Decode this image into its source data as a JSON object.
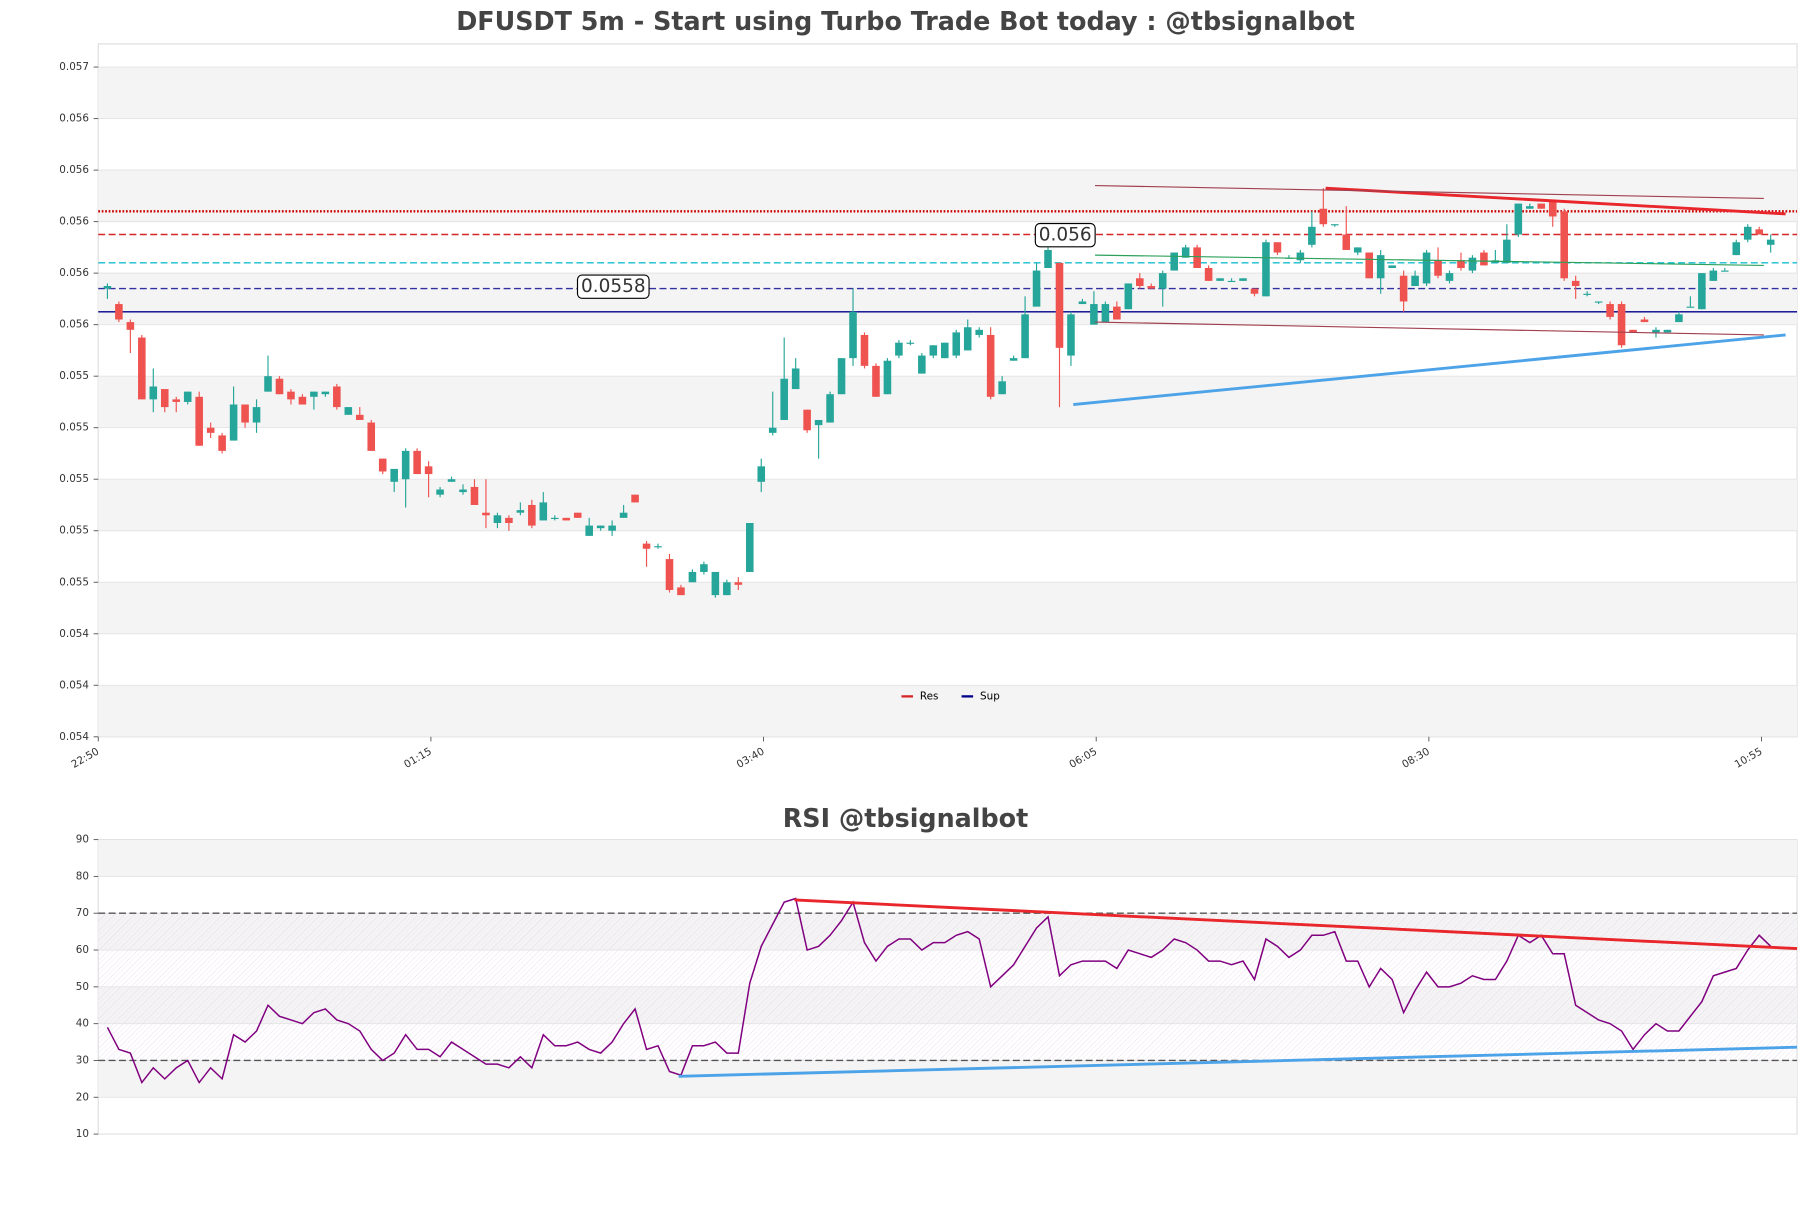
{
  "chart_data": [
    {
      "type": "candlestick",
      "title": "DFUSDT 5m - Start using Turbo Trade Bot today : @tbsignalbot",
      "open": [
        0.05584,
        0.05578,
        0.05571,
        0.05565,
        0.05541,
        0.05545,
        0.05541,
        0.0554,
        0.05542,
        0.0553,
        0.05527,
        0.05525,
        0.05539,
        0.05532,
        0.05544,
        0.05549,
        0.05544,
        0.05542,
        0.05542,
        0.05543,
        0.05546,
        0.05535,
        0.05535,
        0.05532,
        0.05518,
        0.05509,
        0.0551,
        0.05521,
        0.05515,
        0.05504,
        0.05509,
        0.05505,
        0.05507,
        0.05497,
        0.05493,
        0.05495,
        0.05497,
        0.055,
        0.05494,
        0.05495,
        0.05495,
        0.05497,
        0.05488,
        0.05491,
        0.0549,
        0.05495,
        0.05504,
        0.05485,
        0.05484,
        0.05479,
        0.05468,
        0.0547,
        0.05474,
        0.05465,
        0.05465,
        0.0547,
        0.05474,
        0.05509,
        0.05528,
        0.05533,
        0.05545,
        0.05537,
        0.05531,
        0.05532,
        0.05543,
        0.05557,
        0.05566,
        0.05554,
        0.05543,
        0.05558,
        0.05563,
        0.05551,
        0.05558,
        0.05557,
        0.05558,
        0.0556,
        0.05566,
        0.05566,
        0.05543,
        0.05556,
        0.05557,
        0.05577,
        0.05592,
        0.05594,
        0.05558,
        0.05578,
        0.0557,
        0.05571,
        0.05577,
        0.05576,
        0.05588,
        0.05585,
        0.05584,
        0.05591,
        0.05596,
        0.056,
        0.05592,
        0.05587,
        0.05587,
        0.05587,
        0.05584,
        0.05581,
        0.05602,
        0.05596,
        0.05595,
        0.05601,
        0.05615,
        0.05609,
        0.05605,
        0.05598,
        0.05598,
        0.05588,
        0.05592,
        0.05589,
        0.05585,
        0.05586,
        0.05595,
        0.05587,
        0.05595,
        0.05591,
        0.05598,
        0.05594,
        0.05594,
        0.05605,
        0.05615,
        0.05617,
        0.05618,
        0.05614,
        0.05587,
        0.05582,
        0.05579,
        0.05578,
        0.05578,
        0.05568,
        0.05572,
        0.05567,
        0.05567,
        0.05571,
        0.05577,
        0.05576,
        0.05587,
        0.05591,
        0.05597,
        0.05603,
        0.05607,
        0.05601
      ],
      "high": [
        0.05586,
        0.05579,
        0.05572,
        0.05566,
        0.05553,
        0.05545,
        0.05542,
        0.05544,
        0.05544,
        0.05532,
        0.05528,
        0.05546,
        0.05539,
        0.05541,
        0.05558,
        0.0555,
        0.05545,
        0.05543,
        0.05544,
        0.05544,
        0.05547,
        0.05538,
        0.05538,
        0.05533,
        0.05518,
        0.05514,
        0.05522,
        0.05522,
        0.05517,
        0.05507,
        0.05511,
        0.05508,
        0.0551,
        0.0551,
        0.05497,
        0.05496,
        0.05501,
        0.05502,
        0.05505,
        0.05496,
        0.05495,
        0.05497,
        0.05495,
        0.05492,
        0.05494,
        0.055,
        0.05504,
        0.05486,
        0.05485,
        0.05481,
        0.05469,
        0.05475,
        0.05478,
        0.05474,
        0.05471,
        0.05472,
        0.05493,
        0.05518,
        0.05544,
        0.05565,
        0.05557,
        0.05537,
        0.05533,
        0.05544,
        0.05557,
        0.05584,
        0.05567,
        0.05555,
        0.05557,
        0.05564,
        0.05564,
        0.05559,
        0.05562,
        0.05563,
        0.05568,
        0.05572,
        0.05569,
        0.05569,
        0.0555,
        0.05558,
        0.05581,
        0.05594,
        0.056,
        0.05594,
        0.05575,
        0.0558,
        0.05583,
        0.05579,
        0.05579,
        0.05586,
        0.0559,
        0.05586,
        0.05591,
        0.05598,
        0.05601,
        0.05601,
        0.05593,
        0.05588,
        0.05588,
        0.05588,
        0.05584,
        0.05603,
        0.05602,
        0.05597,
        0.05599,
        0.05614,
        0.05623,
        0.05609,
        0.05616,
        0.056,
        0.05598,
        0.05599,
        0.05593,
        0.05591,
        0.05591,
        0.05599,
        0.056,
        0.05591,
        0.05598,
        0.05597,
        0.05599,
        0.05599,
        0.05609,
        0.05617,
        0.05617,
        0.05617,
        0.05618,
        0.05615,
        0.05589,
        0.05583,
        0.05579,
        0.05579,
        0.05579,
        0.05568,
        0.05573,
        0.05569,
        0.05568,
        0.05575,
        0.05581,
        0.0559,
        0.05592,
        0.05592,
        0.05603,
        0.05609,
        0.05608,
        0.05605
      ],
      "low": [
        0.0558,
        0.05571,
        0.05559,
        0.05541,
        0.05536,
        0.05536,
        0.05536,
        0.05539,
        0.05523,
        0.05526,
        0.0552,
        0.05525,
        0.0553,
        0.05528,
        0.05544,
        0.05543,
        0.05539,
        0.05539,
        0.05537,
        0.05542,
        0.05537,
        0.05535,
        0.05533,
        0.05521,
        0.05512,
        0.05505,
        0.05499,
        0.05512,
        0.05503,
        0.05503,
        0.05509,
        0.05504,
        0.055,
        0.05491,
        0.05491,
        0.0549,
        0.05496,
        0.05491,
        0.05494,
        0.05494,
        0.05494,
        0.05495,
        0.05488,
        0.0549,
        0.05488,
        0.05495,
        0.05501,
        0.05476,
        0.05483,
        0.05466,
        0.05465,
        0.0547,
        0.05473,
        0.05464,
        0.05465,
        0.05467,
        0.05474,
        0.05505,
        0.05527,
        0.05533,
        0.05545,
        0.05528,
        0.05518,
        0.05532,
        0.05543,
        0.05554,
        0.05553,
        0.05542,
        0.05543,
        0.05557,
        0.05562,
        0.05551,
        0.05557,
        0.05557,
        0.05557,
        0.0556,
        0.05565,
        0.05541,
        0.05543,
        0.05556,
        0.05557,
        0.05577,
        0.05592,
        0.05538,
        0.05554,
        0.05578,
        0.0557,
        0.05571,
        0.05572,
        0.05576,
        0.05584,
        0.05584,
        0.05577,
        0.05591,
        0.05596,
        0.05592,
        0.05587,
        0.05587,
        0.05587,
        0.05587,
        0.05581,
        0.05581,
        0.05597,
        0.05596,
        0.05594,
        0.056,
        0.05608,
        0.05608,
        0.05599,
        0.05597,
        0.05588,
        0.05582,
        0.05592,
        0.05575,
        0.05585,
        0.05585,
        0.05588,
        0.05586,
        0.05591,
        0.0559,
        0.05593,
        0.05594,
        0.05594,
        0.05604,
        0.05615,
        0.05615,
        0.05608,
        0.05587,
        0.0558,
        0.05581,
        0.05578,
        0.05572,
        0.05561,
        0.05567,
        0.05571,
        0.05565,
        0.05567,
        0.05571,
        0.05577,
        0.05576,
        0.05587,
        0.05591,
        0.05597,
        0.05602,
        0.05605,
        0.05598
      ],
      "close": [
        0.05585,
        0.05572,
        0.05568,
        0.05541,
        0.05546,
        0.05538,
        0.0554,
        0.05544,
        0.05523,
        0.05528,
        0.05521,
        0.05539,
        0.05532,
        0.05538,
        0.0555,
        0.05543,
        0.05541,
        0.05539,
        0.05544,
        0.05544,
        0.05538,
        0.05538,
        0.05533,
        0.05521,
        0.05513,
        0.05514,
        0.05521,
        0.05512,
        0.05512,
        0.05506,
        0.0551,
        0.05506,
        0.055,
        0.05496,
        0.05496,
        0.05493,
        0.05498,
        0.05492,
        0.05501,
        0.05495,
        0.05494,
        0.05495,
        0.05492,
        0.05492,
        0.05492,
        0.05497,
        0.05501,
        0.05483,
        0.05484,
        0.05467,
        0.05465,
        0.05474,
        0.05477,
        0.05474,
        0.0547,
        0.05469,
        0.05493,
        0.05515,
        0.0553,
        0.05549,
        0.05553,
        0.05529,
        0.05533,
        0.05543,
        0.05557,
        0.05575,
        0.05554,
        0.05542,
        0.05556,
        0.05563,
        0.05563,
        0.05558,
        0.05562,
        0.05563,
        0.05567,
        0.05569,
        0.05568,
        0.05542,
        0.05548,
        0.05557,
        0.05574,
        0.05591,
        0.05599,
        0.05561,
        0.05574,
        0.05579,
        0.05578,
        0.05578,
        0.05572,
        0.05586,
        0.05585,
        0.05584,
        0.0559,
        0.05598,
        0.056,
        0.05592,
        0.05587,
        0.05588,
        0.05587,
        0.05588,
        0.05582,
        0.05602,
        0.05598,
        0.05596,
        0.05598,
        0.05608,
        0.05609,
        0.05609,
        0.05599,
        0.056,
        0.05588,
        0.05597,
        0.05593,
        0.05579,
        0.05589,
        0.05598,
        0.05589,
        0.0559,
        0.05592,
        0.05596,
        0.05593,
        0.05595,
        0.05603,
        0.05617,
        0.05616,
        0.05615,
        0.05612,
        0.05588,
        0.05585,
        0.05582,
        0.05579,
        0.05573,
        0.05562,
        0.05567,
        0.05571,
        0.05568,
        0.05568,
        0.05574,
        0.05577,
        0.0559,
        0.05591,
        0.05591,
        0.05602,
        0.05608,
        0.05605,
        0.05603
      ],
      "up_color": "#26a69a",
      "down_color": "#ef5350",
      "xlim": [
        -0.8,
        147.3
      ],
      "xticks": [
        {
          "value": -0.8,
          "label": "22:50"
        },
        {
          "value": 28.2,
          "label": "01:15"
        },
        {
          "value": 57.2,
          "label": "03:40"
        },
        {
          "value": 86.2,
          "label": "06:05"
        },
        {
          "value": 115.2,
          "label": "08:30"
        },
        {
          "value": 144.2,
          "label": "10:55"
        }
      ],
      "ylim": [
        0.0541,
        0.05679
      ],
      "yticks": [
        {
          "value": 0.0541,
          "label": "0.054"
        },
        {
          "value": 0.0543,
          "label": "0.054"
        },
        {
          "value": 0.0545,
          "label": "0.054"
        },
        {
          "value": 0.0547,
          "label": "0.055"
        },
        {
          "value": 0.0549,
          "label": "0.055"
        },
        {
          "value": 0.0551,
          "label": "0.055"
        },
        {
          "value": 0.0553,
          "label": "0.055"
        },
        {
          "value": 0.0555,
          "label": "0.055"
        },
        {
          "value": 0.0557,
          "label": "0.056"
        },
        {
          "value": 0.0559,
          "label": "0.056"
        },
        {
          "value": 0.0561,
          "label": "0.056"
        },
        {
          "value": 0.0563,
          "label": "0.056"
        },
        {
          "value": 0.0565,
          "label": "0.056"
        },
        {
          "value": 0.0567,
          "label": "0.057"
        }
      ],
      "grid": true,
      "bands": true,
      "hlines": [
        {
          "value": 0.05614,
          "color": "#cc0000",
          "style": "dotted"
        },
        {
          "value": 0.05605,
          "color": "#d62728",
          "style": "dashed"
        },
        {
          "value": 0.05594,
          "color": "#17becf",
          "style": "dashed"
        },
        {
          "value": 0.05584,
          "color": "#3030a0",
          "style": "dashed"
        },
        {
          "value": 0.05575,
          "color": "#00008b",
          "style": "solid"
        }
      ],
      "trendlines": [
        {
          "x": [
            106.2,
            146.3
          ],
          "y": [
            0.05623,
            0.05613
          ],
          "color": "#e8262b",
          "width": 2.5
        },
        {
          "x": [
            84.2,
            146.3
          ],
          "y": [
            0.05539,
            0.05566
          ],
          "color": "#4da3e8",
          "width": 2.5
        },
        {
          "x": [
            86.1,
            144.4
          ],
          "y": [
            0.05624,
            0.05619
          ],
          "color": "#a04050",
          "width": 1
        },
        {
          "x": [
            86.1,
            144.4
          ],
          "y": [
            0.05571,
            0.05566
          ],
          "color": "#a04050",
          "width": 1
        },
        {
          "x": [
            86.1,
            144.4
          ],
          "y": [
            0.05597,
            0.05593
          ],
          "color": "#2ca05a",
          "width": 1
        }
      ],
      "annotations": [
        {
          "text": "0.056",
          "x": 83.5,
          "y": 0.05605,
          "color": "#d62728"
        },
        {
          "text": "0.0558",
          "x": 44.1,
          "y": 0.05585,
          "color": "#0000cc"
        }
      ],
      "legend": [
        {
          "name": "Res",
          "color": "#d62728"
        },
        {
          "name": "Sup",
          "color": "#00008b"
        }
      ],
      "legend_loc": "lower center"
    },
    {
      "type": "line",
      "title": "RSI @tbsignalbot",
      "values": [
        39,
        33,
        32,
        24,
        28,
        25,
        28,
        30,
        24,
        28,
        25,
        37,
        35,
        38,
        45,
        42,
        41,
        40,
        43,
        44,
        41,
        40,
        38,
        33,
        30,
        32,
        37,
        33,
        33,
        31,
        35,
        33,
        31,
        29,
        29,
        28,
        31,
        28,
        37,
        34,
        34,
        35,
        33,
        32,
        35,
        40,
        44,
        33,
        34,
        27,
        26,
        34,
        34,
        35,
        32,
        32,
        51,
        61,
        67,
        73,
        74,
        60,
        61,
        64,
        68,
        73,
        62,
        57,
        61,
        63,
        63,
        60,
        62,
        62,
        64,
        65,
        63,
        50,
        53,
        56,
        61,
        66,
        69,
        53,
        56,
        57,
        57,
        57,
        55,
        60,
        59,
        58,
        60,
        63,
        62,
        60,
        57,
        57,
        56,
        57,
        52,
        63,
        61,
        58,
        60,
        64,
        64,
        65,
        57,
        57,
        50,
        55,
        52,
        43,
        49,
        54,
        50,
        50,
        51,
        53,
        52,
        52,
        57,
        64,
        62,
        64,
        59,
        59,
        45,
        43,
        41,
        40,
        38,
        33,
        37,
        40,
        38,
        38,
        42,
        46,
        53,
        54,
        55,
        60,
        64,
        61
      ],
      "color": "#800080",
      "xlim": [
        -0.8,
        147.3
      ],
      "ylim": [
        10,
        90
      ],
      "yticks": [
        10,
        20,
        30,
        40,
        50,
        60,
        70,
        80,
        90
      ],
      "grid": true,
      "bands": true,
      "hatch_range": [
        30,
        70
      ],
      "hlines": [
        {
          "value": 70,
          "color": "#555555",
          "style": "dashed"
        },
        {
          "value": 30,
          "color": "#555555",
          "style": "dashed"
        }
      ],
      "trendlines": [
        {
          "x": [
            59.9,
            147.3
          ],
          "y": [
            73.6,
            60.4
          ],
          "color": "#e8262b",
          "width": 2.5
        },
        {
          "x": [
            49.8,
            147.3
          ],
          "y": [
            25.7,
            33.6
          ],
          "color": "#4da3e8",
          "width": 2.5
        }
      ]
    }
  ]
}
